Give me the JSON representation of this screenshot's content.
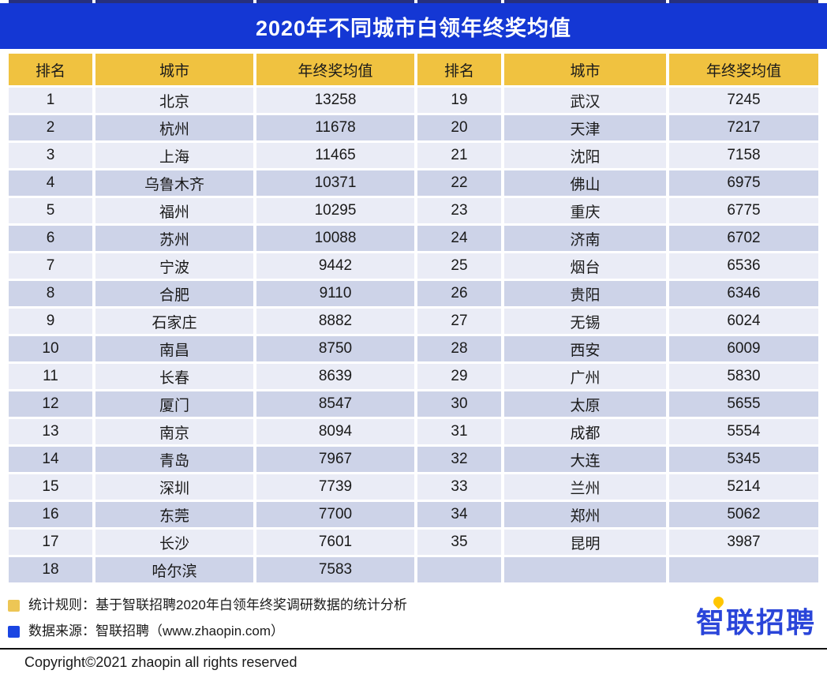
{
  "page": {
    "title": "2020年不同城市白领年终奖均值"
  },
  "table": {
    "headers": [
      "排名",
      "城市",
      "年终奖均值",
      "排名",
      "城市",
      "年终奖均值"
    ]
  },
  "footer": {
    "notes": [
      {
        "icon": "yellow-square-icon",
        "color": "#edc655",
        "text": "统计规则：基于智联招聘2020年白领年终奖调研数据的统计分析"
      },
      {
        "icon": "blue-square-icon",
        "color": "#1a45e2",
        "text": "数据来源：智联招聘（www.zhaopin.com）"
      }
    ],
    "copyright": "Copyright©2021 zhaopin all rights reserved",
    "logo_text": "智联招聘"
  },
  "colors": {
    "title_bar": "#1437d4",
    "top_strip": "#27307d",
    "header_gold": "#f0c240",
    "row_light": "#eaecf6",
    "row_dark": "#cdd3e8",
    "legend_yellow": "#edc655",
    "legend_blue": "#1a45e2",
    "logo_blue": "#2a45d9",
    "logo_dot": "#ffc600"
  },
  "chart_data": {
    "type": "table",
    "title": "2020年不同城市白领年终奖均值",
    "columns": [
      "排名",
      "城市",
      "年终奖均值"
    ],
    "layout": "two side-by-side halves, ranks 1-18 left, 19-35 right, last right cell empty",
    "records": [
      {
        "rank": 1,
        "city": "北京",
        "value": 13258
      },
      {
        "rank": 2,
        "city": "杭州",
        "value": 11678
      },
      {
        "rank": 3,
        "city": "上海",
        "value": 11465
      },
      {
        "rank": 4,
        "city": "乌鲁木齐",
        "value": 10371
      },
      {
        "rank": 5,
        "city": "福州",
        "value": 10295
      },
      {
        "rank": 6,
        "city": "苏州",
        "value": 10088
      },
      {
        "rank": 7,
        "city": "宁波",
        "value": 9442
      },
      {
        "rank": 8,
        "city": "合肥",
        "value": 9110
      },
      {
        "rank": 9,
        "city": "石家庄",
        "value": 8882
      },
      {
        "rank": 10,
        "city": "南昌",
        "value": 8750
      },
      {
        "rank": 11,
        "city": "长春",
        "value": 8639
      },
      {
        "rank": 12,
        "city": "厦门",
        "value": 8547
      },
      {
        "rank": 13,
        "city": "南京",
        "value": 8094
      },
      {
        "rank": 14,
        "city": "青岛",
        "value": 7967
      },
      {
        "rank": 15,
        "city": "深圳",
        "value": 7739
      },
      {
        "rank": 16,
        "city": "东莞",
        "value": 7700
      },
      {
        "rank": 17,
        "city": "长沙",
        "value": 7601
      },
      {
        "rank": 18,
        "city": "哈尔滨",
        "value": 7583
      },
      {
        "rank": 19,
        "city": "武汉",
        "value": 7245
      },
      {
        "rank": 20,
        "city": "天津",
        "value": 7217
      },
      {
        "rank": 21,
        "city": "沈阳",
        "value": 7158
      },
      {
        "rank": 22,
        "city": "佛山",
        "value": 6975
      },
      {
        "rank": 23,
        "city": "重庆",
        "value": 6775
      },
      {
        "rank": 24,
        "city": "济南",
        "value": 6702
      },
      {
        "rank": 25,
        "city": "烟台",
        "value": 6536
      },
      {
        "rank": 26,
        "city": "贵阳",
        "value": 6346
      },
      {
        "rank": 27,
        "city": "无锡",
        "value": 6024
      },
      {
        "rank": 28,
        "city": "西安",
        "value": 6009
      },
      {
        "rank": 29,
        "city": "广州",
        "value": 5830
      },
      {
        "rank": 30,
        "city": "太原",
        "value": 5655
      },
      {
        "rank": 31,
        "city": "成都",
        "value": 5554
      },
      {
        "rank": 32,
        "city": "大连",
        "value": 5345
      },
      {
        "rank": 33,
        "city": "兰州",
        "value": 5214
      },
      {
        "rank": 34,
        "city": "郑州",
        "value": 5062
      },
      {
        "rank": 35,
        "city": "昆明",
        "value": 3987
      }
    ]
  }
}
